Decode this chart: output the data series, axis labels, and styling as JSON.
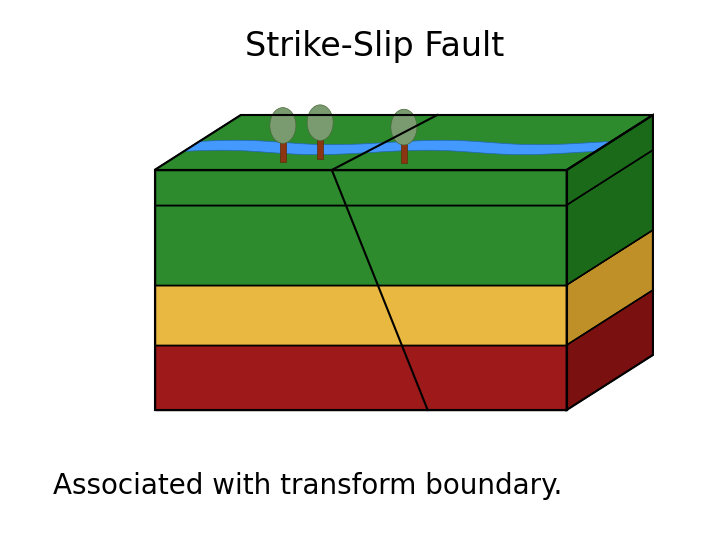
{
  "title": "Strike-Slip Fault",
  "subtitle": "Associated with transform boundary.",
  "title_fontsize": 24,
  "subtitle_fontsize": 20,
  "background_color": "#ffffff",
  "layers": {
    "top_green_color": "#2d8a2d",
    "green_layer_color": "#2d8a2d",
    "yellow_layer_color": "#e8b840",
    "red_layer_color": "#9e1a1a",
    "right_green_color": "#1a6a1a",
    "right_yellow_color": "#c09028",
    "right_red_color": "#7a1010",
    "river_color": "#4499ff",
    "fault_color": "#000000",
    "outline_color": "#000000",
    "trunk_color": "#8B3513",
    "canopy_color": "#7a9a70"
  }
}
